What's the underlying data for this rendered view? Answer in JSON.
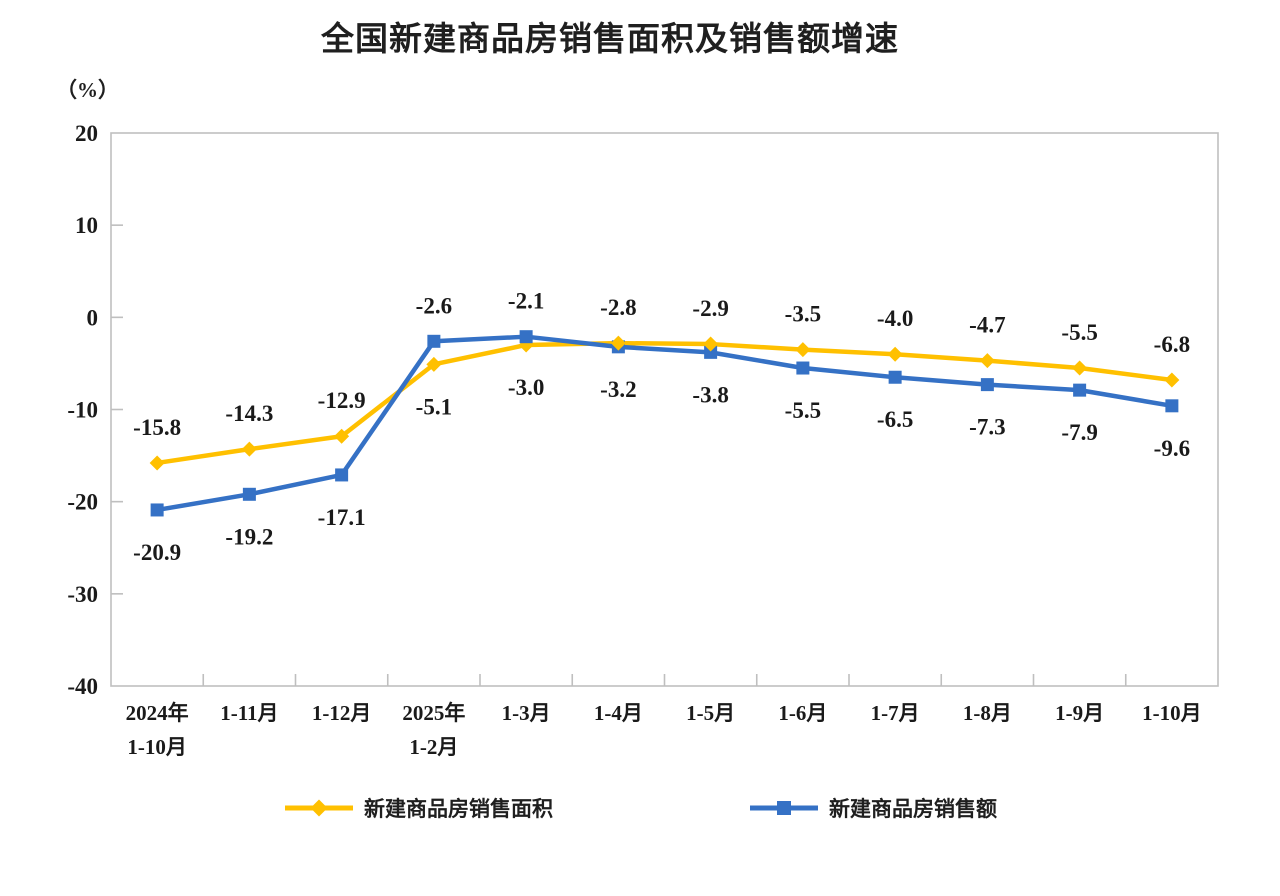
{
  "title": "全国新建商品房销售面积及销售额增速",
  "unit_label": "（%）",
  "chart_data": {
    "type": "line",
    "title": "全国新建商品房销售面积及销售额增速",
    "categories": [
      "2024年\n1-10月",
      "1-11月",
      "1-12月",
      "2025年\n1-2月",
      "1-3月",
      "1-4月",
      "1-5月",
      "1-6月",
      "1-7月",
      "1-8月",
      "1-9月",
      "1-10月"
    ],
    "series": [
      {
        "key": "sales-area",
        "name": "新建商品房销售面积",
        "color": "#FFC000",
        "marker": "diamond",
        "values": [
          -15.8,
          -14.3,
          -12.9,
          -5.1,
          -3.0,
          -2.8,
          -2.9,
          -3.5,
          -4.0,
          -4.7,
          -5.5,
          -6.8
        ]
      },
      {
        "key": "sales-value",
        "name": "新建商品房销售额",
        "color": "#3571C5",
        "marker": "square",
        "values": [
          -20.9,
          -19.2,
          -17.1,
          -2.6,
          -2.1,
          -3.2,
          -3.8,
          -5.5,
          -6.5,
          -7.3,
          -7.9,
          -9.6
        ]
      }
    ],
    "ylabel": "（%）",
    "ylim": [
      -40,
      20
    ],
    "yticks": [
      20,
      10,
      0,
      -10,
      -20,
      -30,
      -40
    ],
    "grid": false,
    "legend_position": "bottom",
    "data_labels": true,
    "axis_color": "#bfbfbf",
    "text_color": "#1a1a1a"
  }
}
